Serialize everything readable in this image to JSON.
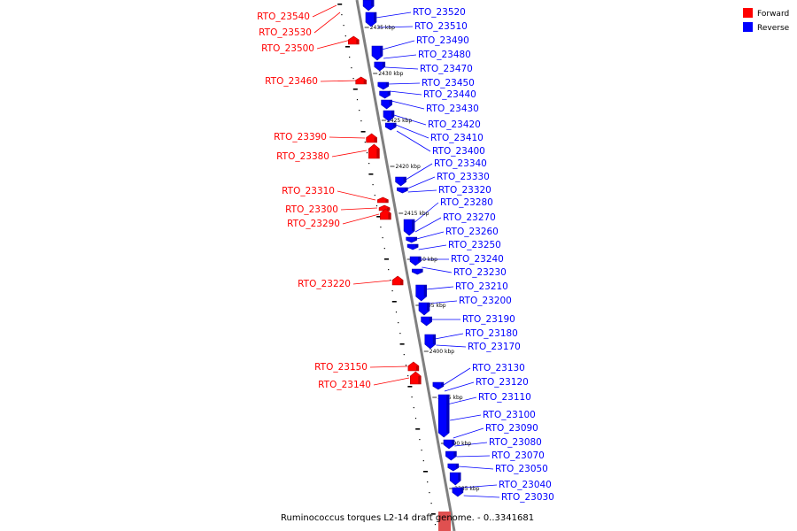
{
  "colors": {
    "forward": "#ff0000",
    "reverse": "#0000ff",
    "backbone": "#808080"
  },
  "legend": [
    {
      "label": "Forward",
      "strand": "forward",
      "color": "#ff0000"
    },
    {
      "label": "Reverse",
      "strand": "reverse",
      "color": "#0000ff"
    }
  ],
  "caption": "Ruminococcus torques L2-14 draft genome. - 0..3341681",
  "ticks": [
    "2435 kbp",
    "2430 kbp",
    "2425 kbp",
    "2420 kbp",
    "2415 kbp",
    "2410 kbp",
    "2405 kbp",
    "2400 kbp",
    "2395 kbp",
    "2390 kbp",
    "2385 kbp"
  ],
  "forward_genes": [
    "RTO_23540",
    "RTO_23530",
    "RTO_23500",
    "RTO_23460",
    "RTO_23390",
    "RTO_23380",
    "RTO_23310",
    "RTO_23300",
    "RTO_23290",
    "RTO_23220",
    "RTO_23150",
    "RTO_23140"
  ],
  "reverse_genes": [
    "RTO_23520",
    "RTO_23510",
    "RTO_23490",
    "RTO_23480",
    "RTO_23470",
    "RTO_23450",
    "RTO_23440",
    "RTO_23430",
    "RTO_23420",
    "RTO_23410",
    "RTO_23400",
    "RTO_23340",
    "RTO_23330",
    "RTO_23320",
    "RTO_23280",
    "RTO_23270",
    "RTO_23260",
    "RTO_23250",
    "RTO_23240",
    "RTO_23230",
    "RTO_23210",
    "RTO_23200",
    "RTO_23190",
    "RTO_23180",
    "RTO_23170",
    "RTO_23130",
    "RTO_23120",
    "RTO_23110",
    "RTO_23100",
    "RTO_23090",
    "RTO_23080",
    "RTO_23070",
    "RTO_23050",
    "RTO_23040",
    "RTO_23030"
  ]
}
